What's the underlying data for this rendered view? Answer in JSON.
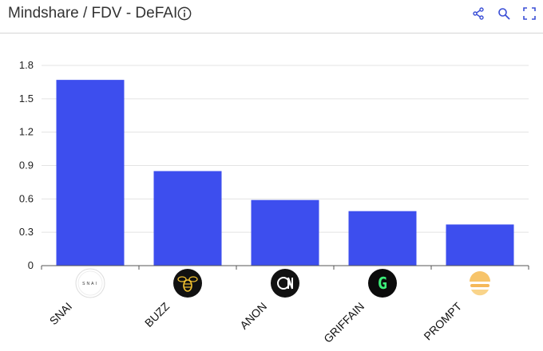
{
  "header": {
    "title": "Mindshare / FDV - DeFAI",
    "tools": [
      {
        "name": "share-icon"
      },
      {
        "name": "zoom-icon"
      },
      {
        "name": "fullscreen-icon"
      }
    ]
  },
  "colors": {
    "bar": "#3D4EEE",
    "grid": "#e3e3e3",
    "axis": "#555555",
    "accent": "#3B4FD6"
  },
  "chart_data": {
    "type": "bar",
    "title": "Mindshare / FDV - DeFAI",
    "categories": [
      "SNAI",
      "BUZZ",
      "ANON",
      "GRIFFAIN",
      "PROMPT"
    ],
    "values": [
      1.67,
      0.85,
      0.59,
      0.49,
      0.37
    ],
    "ylim": [
      0,
      1.8
    ],
    "yticks": [
      "0",
      "0.3",
      "0.6",
      "0.9",
      "1.2",
      "1.5",
      "1.8"
    ],
    "grid": true,
    "category_icons": [
      "snai-logo-icon",
      "buzz-bee-icon",
      "anon-logo-icon",
      "griffain-g-icon",
      "prompt-logo-icon"
    ],
    "icon_texts": [
      "SNAI",
      "",
      "",
      "G",
      ""
    ]
  }
}
